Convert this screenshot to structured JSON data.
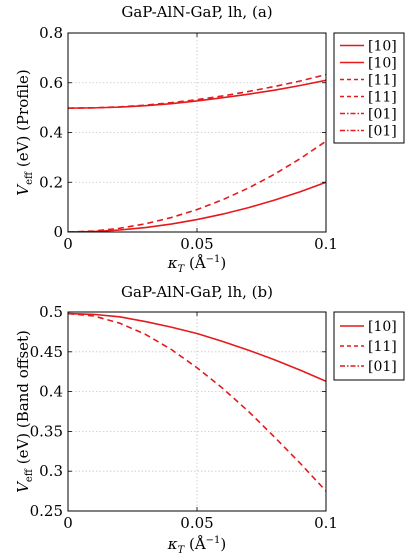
{
  "chart_data": [
    {
      "type": "line",
      "title": "GaP-AlN-GaP, lh, (a)",
      "xlabel": {
        "symbol": "κ",
        "sub": "T",
        "unit": "(Å",
        "exp": "−1",
        "close": ")"
      },
      "ylabel": {
        "symbol": "V",
        "sub": "eff",
        "rest": "(eV) (Profile)"
      },
      "xlim": [
        0,
        0.1
      ],
      "ylim": [
        0,
        0.8
      ],
      "xticks": [
        0,
        0.05,
        0.1
      ],
      "xtick_labels": [
        "0",
        "0.05",
        "0.1"
      ],
      "yticks": [
        0,
        0.2,
        0.4,
        0.6,
        0.8
      ],
      "ytick_labels": [
        "0",
        "0.2",
        "0.4",
        "0.6",
        "0.8"
      ],
      "grid": true,
      "legend_placement": "outside-right",
      "legend": [
        "[10]",
        "[10]",
        "[11]",
        "[11]",
        "[01]",
        "[01]"
      ],
      "series": [
        {
          "legend_index": 0,
          "style": "solid",
          "color": "#e41a1c",
          "x": [
            0,
            0.01,
            0.02,
            0.03,
            0.04,
            0.05,
            0.06,
            0.07,
            0.08,
            0.09,
            0.1
          ],
          "y": [
            0.498,
            0.499,
            0.502,
            0.508,
            0.516,
            0.527,
            0.54,
            0.554,
            0.57,
            0.589,
            0.61
          ]
        },
        {
          "legend_index": 1,
          "style": "solid",
          "color": "#e41a1c",
          "x": [
            0,
            0.01,
            0.02,
            0.03,
            0.04,
            0.05,
            0.06,
            0.07,
            0.08,
            0.09,
            0.1
          ],
          "y": [
            0.0,
            0.002,
            0.008,
            0.018,
            0.032,
            0.05,
            0.072,
            0.098,
            0.128,
            0.162,
            0.2
          ]
        },
        {
          "legend_index": 2,
          "style": "dashed",
          "color": "#e41a1c",
          "x": [
            0,
            0.01,
            0.02,
            0.03,
            0.04,
            0.05,
            0.06,
            0.07,
            0.08,
            0.09,
            0.1
          ],
          "y": [
            0.498,
            0.499,
            0.503,
            0.51,
            0.52,
            0.532,
            0.547,
            0.565,
            0.585,
            0.607,
            0.633
          ]
        },
        {
          "legend_index": 3,
          "style": "dashed",
          "color": "#e41a1c",
          "x": [
            0,
            0.01,
            0.02,
            0.03,
            0.04,
            0.05,
            0.06,
            0.07,
            0.08,
            0.09,
            0.1
          ],
          "y": [
            0.0,
            0.004,
            0.015,
            0.033,
            0.058,
            0.09,
            0.13,
            0.177,
            0.232,
            0.295,
            0.365
          ]
        }
      ]
    },
    {
      "type": "line",
      "title": "GaP-AlN-GaP, lh, (b)",
      "xlabel": {
        "symbol": "κ",
        "sub": "T",
        "unit": "(Å",
        "exp": "−1",
        "close": ")"
      },
      "ylabel": {
        "symbol": "V",
        "sub": "eff",
        "rest": "(eV) (Band offset)"
      },
      "xlim": [
        0,
        0.1
      ],
      "ylim": [
        0.25,
        0.5
      ],
      "xticks": [
        0,
        0.05,
        0.1
      ],
      "xtick_labels": [
        "0",
        "0.05",
        "0.1"
      ],
      "yticks": [
        0.25,
        0.3,
        0.35,
        0.4,
        0.45,
        0.5
      ],
      "ytick_labels": [
        "0.25",
        "0.3",
        "0.35",
        "0.4",
        "0.45",
        "0.5"
      ],
      "grid": true,
      "legend_placement": "outside-right",
      "legend": [
        "[10]",
        "[11]",
        "[01]"
      ],
      "series": [
        {
          "legend_index": 0,
          "style": "solid",
          "color": "#e41a1c",
          "x": [
            0,
            0.01,
            0.02,
            0.03,
            0.04,
            0.05,
            0.06,
            0.07,
            0.08,
            0.09,
            0.1
          ],
          "y": [
            0.498,
            0.497,
            0.494,
            0.488,
            0.481,
            0.473,
            0.463,
            0.452,
            0.44,
            0.427,
            0.413
          ]
        },
        {
          "legend_index": 1,
          "style": "dashed",
          "color": "#e41a1c",
          "x": [
            0,
            0.01,
            0.02,
            0.03,
            0.04,
            0.05,
            0.06,
            0.07,
            0.08,
            0.09,
            0.1
          ],
          "y": [
            0.498,
            0.495,
            0.486,
            0.472,
            0.453,
            0.43,
            0.404,
            0.375,
            0.343,
            0.31,
            0.275
          ]
        }
      ]
    }
  ]
}
